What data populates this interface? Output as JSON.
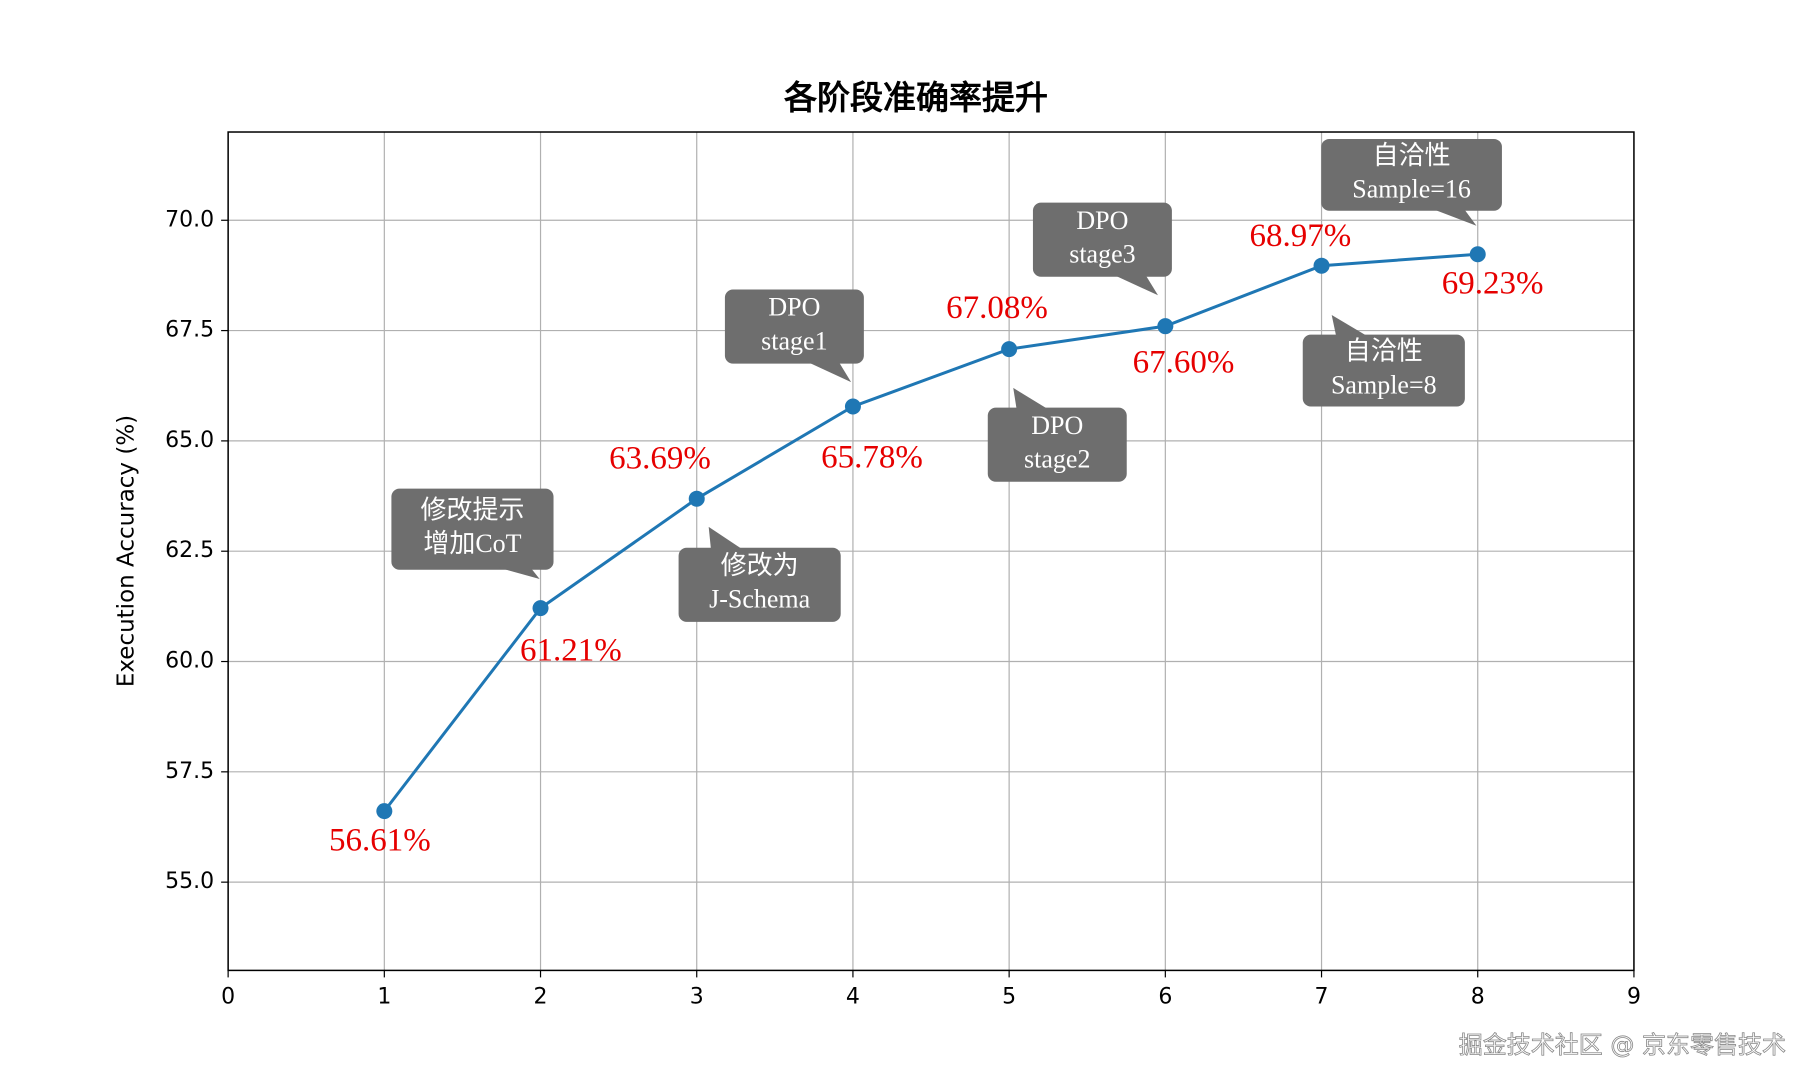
{
  "chart_data": {
    "type": "line",
    "title": "各阶段准确率提升",
    "y_label": "Execution Accuracy (%)",
    "x": [
      1,
      2,
      3,
      4,
      5,
      6,
      7,
      8
    ],
    "values": [
      56.61,
      61.21,
      63.69,
      65.78,
      67.08,
      67.6,
      68.97,
      69.23
    ],
    "value_labels": [
      "56.61%",
      "61.21%",
      "63.69%",
      "65.78%",
      "67.08%",
      "67.60%",
      "68.97%",
      "69.23%"
    ],
    "color": "#1f77b4",
    "label_color": "#e60000",
    "annotation_color": "#6e6e6e",
    "annotations": [
      [
        "修改提示",
        "增加CoT"
      ],
      [
        "修改为",
        "J-Schema"
      ],
      [
        "DPO",
        "stage1"
      ],
      [
        "DPO",
        "stage2"
      ],
      [
        "DPO",
        "stage3"
      ],
      [
        "自洽性",
        "Sample=8"
      ],
      [
        "自洽性",
        "Sample=16"
      ]
    ],
    "xlim": [
      0,
      9
    ],
    "xticks": [
      0,
      1,
      2,
      3,
      4,
      5,
      6,
      7,
      8,
      9
    ],
    "ylim": [
      53.0,
      72.0
    ],
    "yticks": [
      {
        "value": 55,
        "label": "55.0"
      },
      {
        "value": 57.5,
        "label": "57.5"
      },
      {
        "value": 60,
        "label": "60.0"
      },
      {
        "value": 62.5,
        "label": "62.5"
      },
      {
        "value": 65,
        "label": "65.0"
      },
      {
        "value": 67.5,
        "label": "67.5"
      },
      {
        "value": 70,
        "label": "70.0"
      }
    ],
    "grid": true
  },
  "watermark": "掘金技术社区 @ 京东零售技术"
}
